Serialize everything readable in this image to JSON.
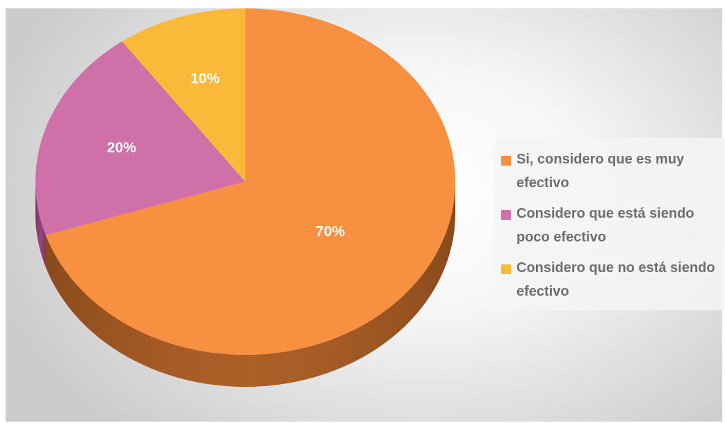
{
  "chart_data": {
    "type": "pie",
    "style": "3d",
    "title": "",
    "slices": [
      {
        "label": "Si, considero que es muy efectivo",
        "value": 70,
        "display": "70%",
        "color": "#f79141",
        "side_color": "#8a4a1c"
      },
      {
        "label": "Considero que está siendo poco efectivo",
        "value": 20,
        "display": "20%",
        "color": "#d070a8",
        "side_color": "#7a3060"
      },
      {
        "label": "Considero que no está siendo efectivo",
        "value": 10,
        "display": "10%",
        "color": "#fbb93a",
        "side_color": "#8a6010"
      }
    ],
    "legend_position": "right"
  },
  "legend": {
    "items": [
      {
        "label": "Si, considero que es muy efectivo"
      },
      {
        "label": "Considero que está siendo poco efectivo"
      },
      {
        "label": "Considero que no está siendo efectivo"
      }
    ]
  }
}
